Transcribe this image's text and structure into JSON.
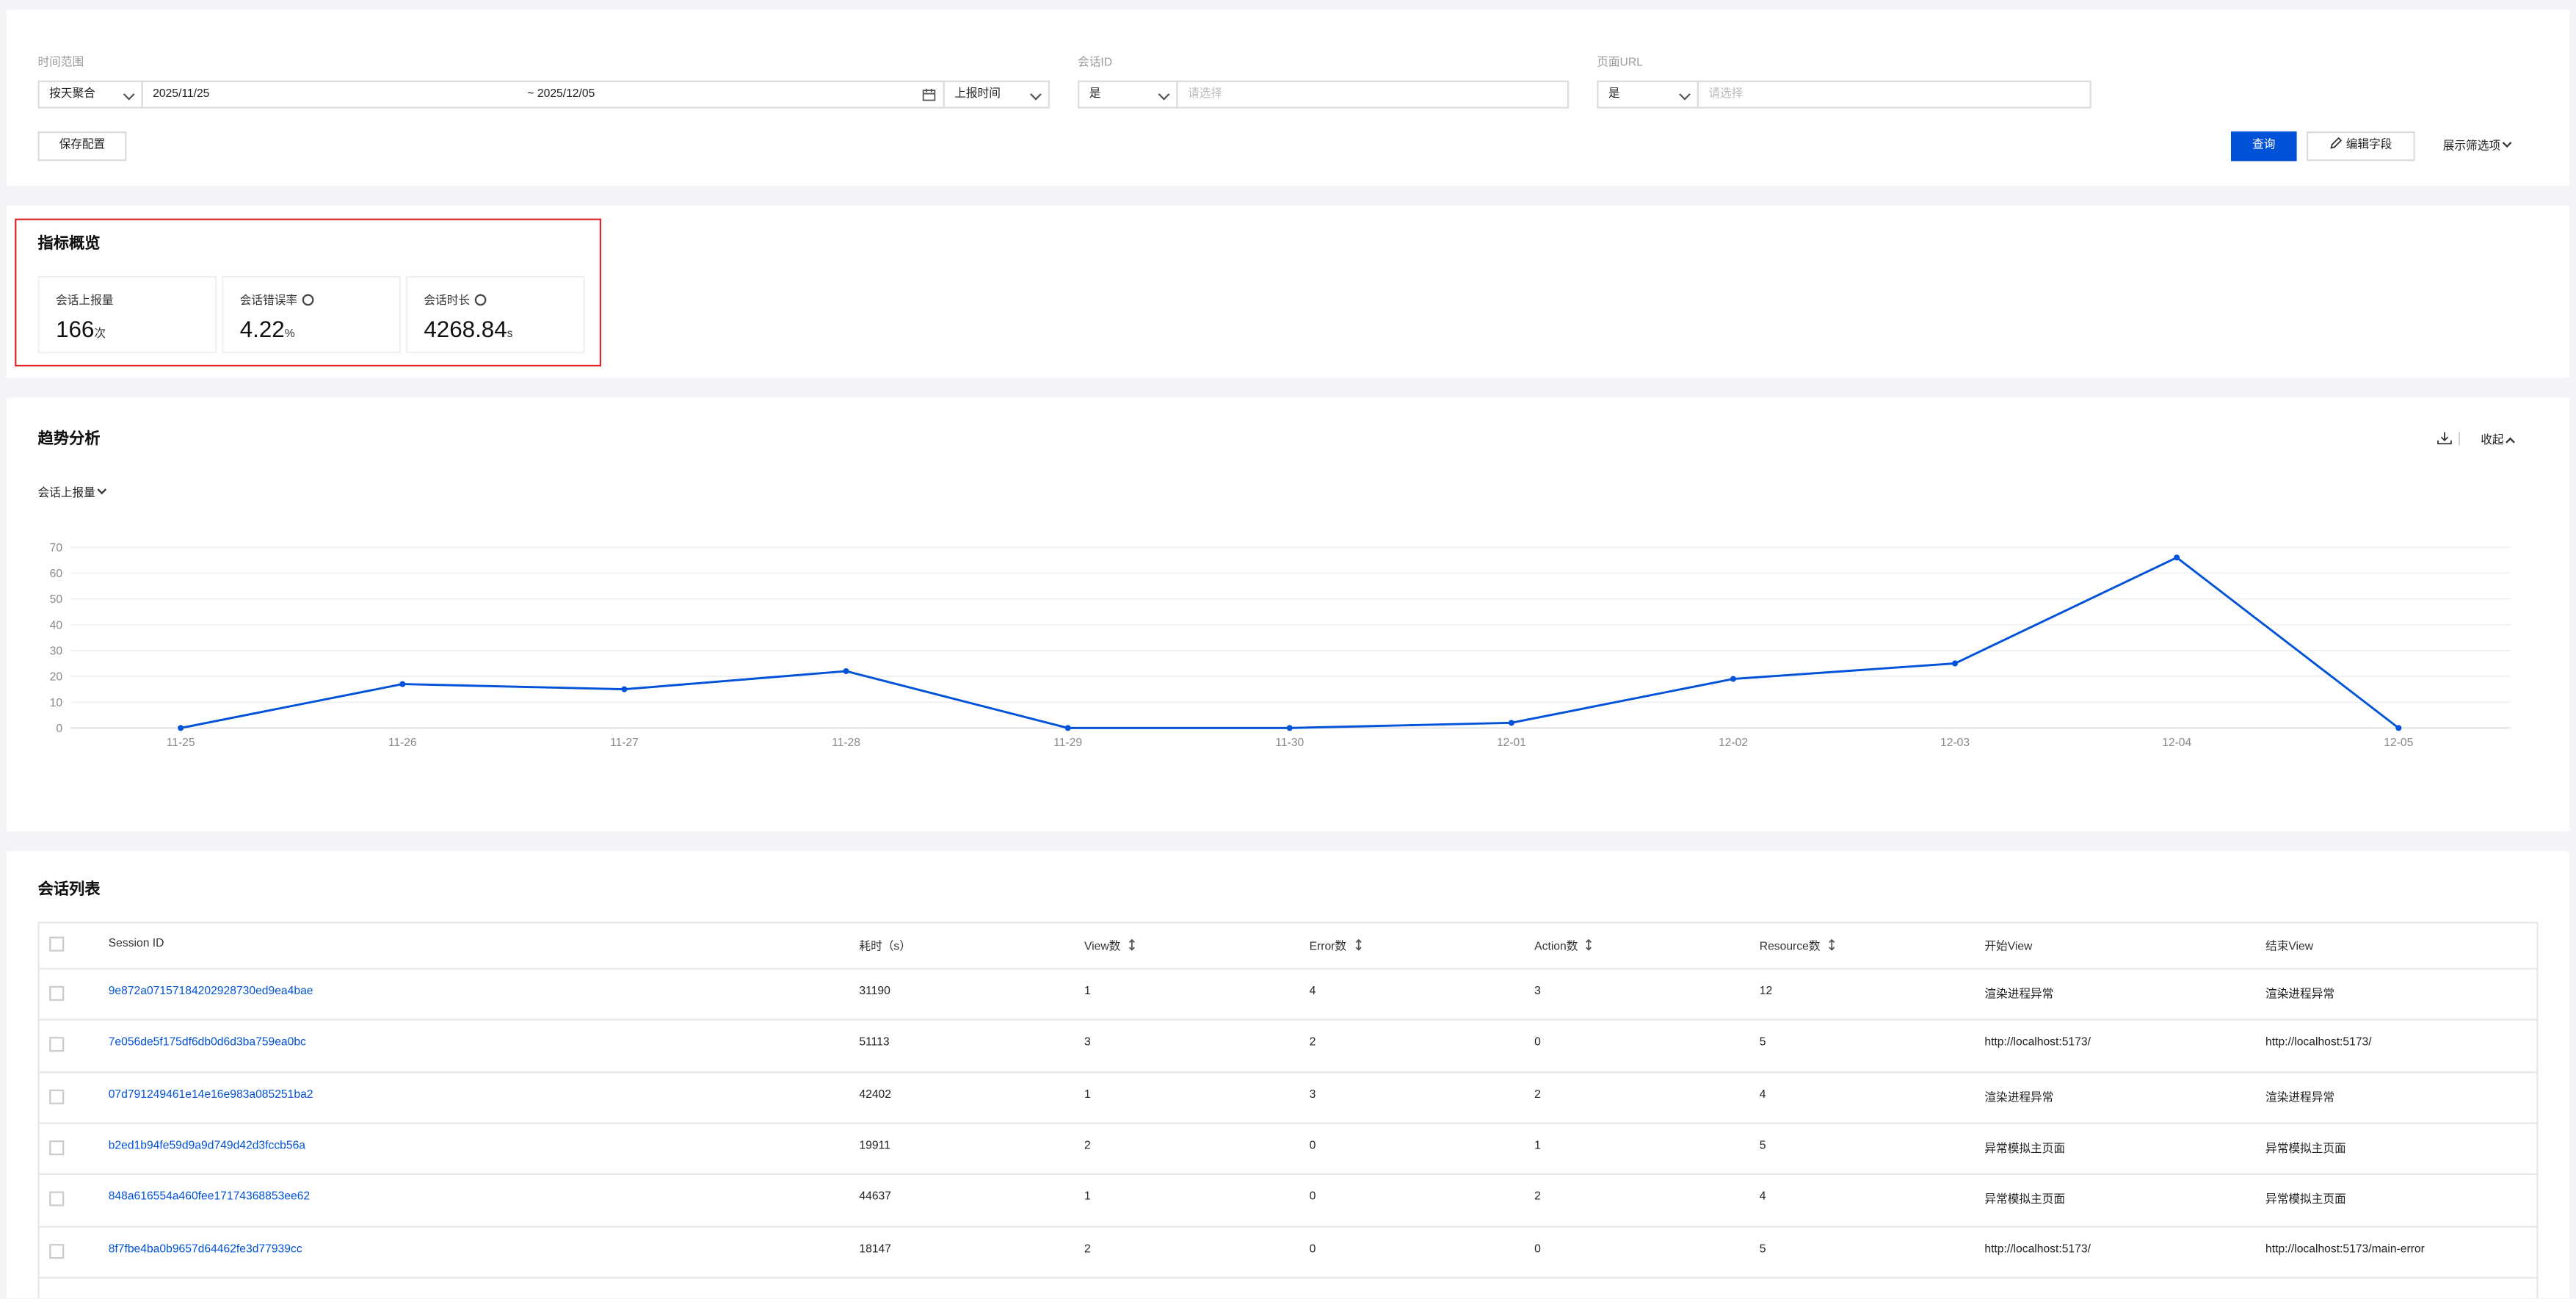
{
  "filters": {
    "time_range_label": "时间范围",
    "aggregation": "按天聚合",
    "date_start": "2025/11/25",
    "date_separator": "~",
    "date_end": "2025/12/05",
    "time_field": "上报时间",
    "session_id_label": "会话ID",
    "session_id_operator": "是",
    "session_id_placeholder": "请选择",
    "page_url_label": "页面URL",
    "page_url_operator": "是",
    "page_url_placeholder": "请选择",
    "save_button": "保存配置",
    "query_button": "查询",
    "edit_fields_button": "编辑字段",
    "show_filters_button": "展示筛选项"
  },
  "overview": {
    "title": "指标概览",
    "metrics": [
      {
        "label": "会话上报量",
        "value": 166,
        "unit": "次"
      },
      {
        "label": "会话错误率",
        "value": 4.22,
        "unit": "%"
      },
      {
        "label": "会话时长",
        "value": 4268.84,
        "unit": "s"
      }
    ]
  },
  "trend": {
    "title": "趋势分析",
    "collapse": "收起",
    "metric_select": "会话上报量"
  },
  "chart_data": {
    "type": "line",
    "categories": [
      "11-25",
      "11-26",
      "11-27",
      "11-28",
      "11-29",
      "11-30",
      "12-01",
      "12-02",
      "12-03",
      "12-04",
      "12-05"
    ],
    "values": [
      0,
      17,
      15,
      22,
      0,
      0,
      2,
      19,
      25,
      66,
      0
    ],
    "color": "#0052d9",
    "ylim": [
      0,
      70
    ],
    "yticks": [
      0,
      10,
      20,
      30,
      40,
      50,
      60,
      70
    ],
    "grid": true
  },
  "table": {
    "title": "会话列表",
    "headers": [
      "Session ID",
      "耗时（s）",
      "View数",
      "Error数",
      "Action数",
      "Resource数",
      "开始View",
      "结束View"
    ],
    "rows": [
      [
        "9e872a07157184202928730ed9ea4bae",
        "31190",
        "1",
        "4",
        "3",
        "12",
        "渲染进程异常",
        "渲染进程异常"
      ],
      [
        "7e056de5f175df6db0d6d3ba759ea0bc",
        "51113",
        "3",
        "2",
        "0",
        "5",
        "http://localhost:5173/",
        "http://localhost:5173/"
      ],
      [
        "07d791249461e14e16e983a085251ba2",
        "42402",
        "1",
        "3",
        "2",
        "4",
        "渲染进程异常",
        "渲染进程异常"
      ],
      [
        "b2ed1b94fe59d9a9d749d42d3fccb56a",
        "19911",
        "2",
        "0",
        "1",
        "5",
        "异常模拟主页面",
        "异常模拟主页面"
      ],
      [
        "848a616554a460fee17174368853ee62",
        "44637",
        "1",
        "0",
        "2",
        "4",
        "异常模拟主页面",
        "异常模拟主页面"
      ],
      [
        "8f7fbe4ba0b9657d64462fe3d77939cc",
        "18147",
        "2",
        "0",
        "0",
        "5",
        "http://localhost:5173/",
        "http://localhost:5173/main-error"
      ]
    ]
  }
}
